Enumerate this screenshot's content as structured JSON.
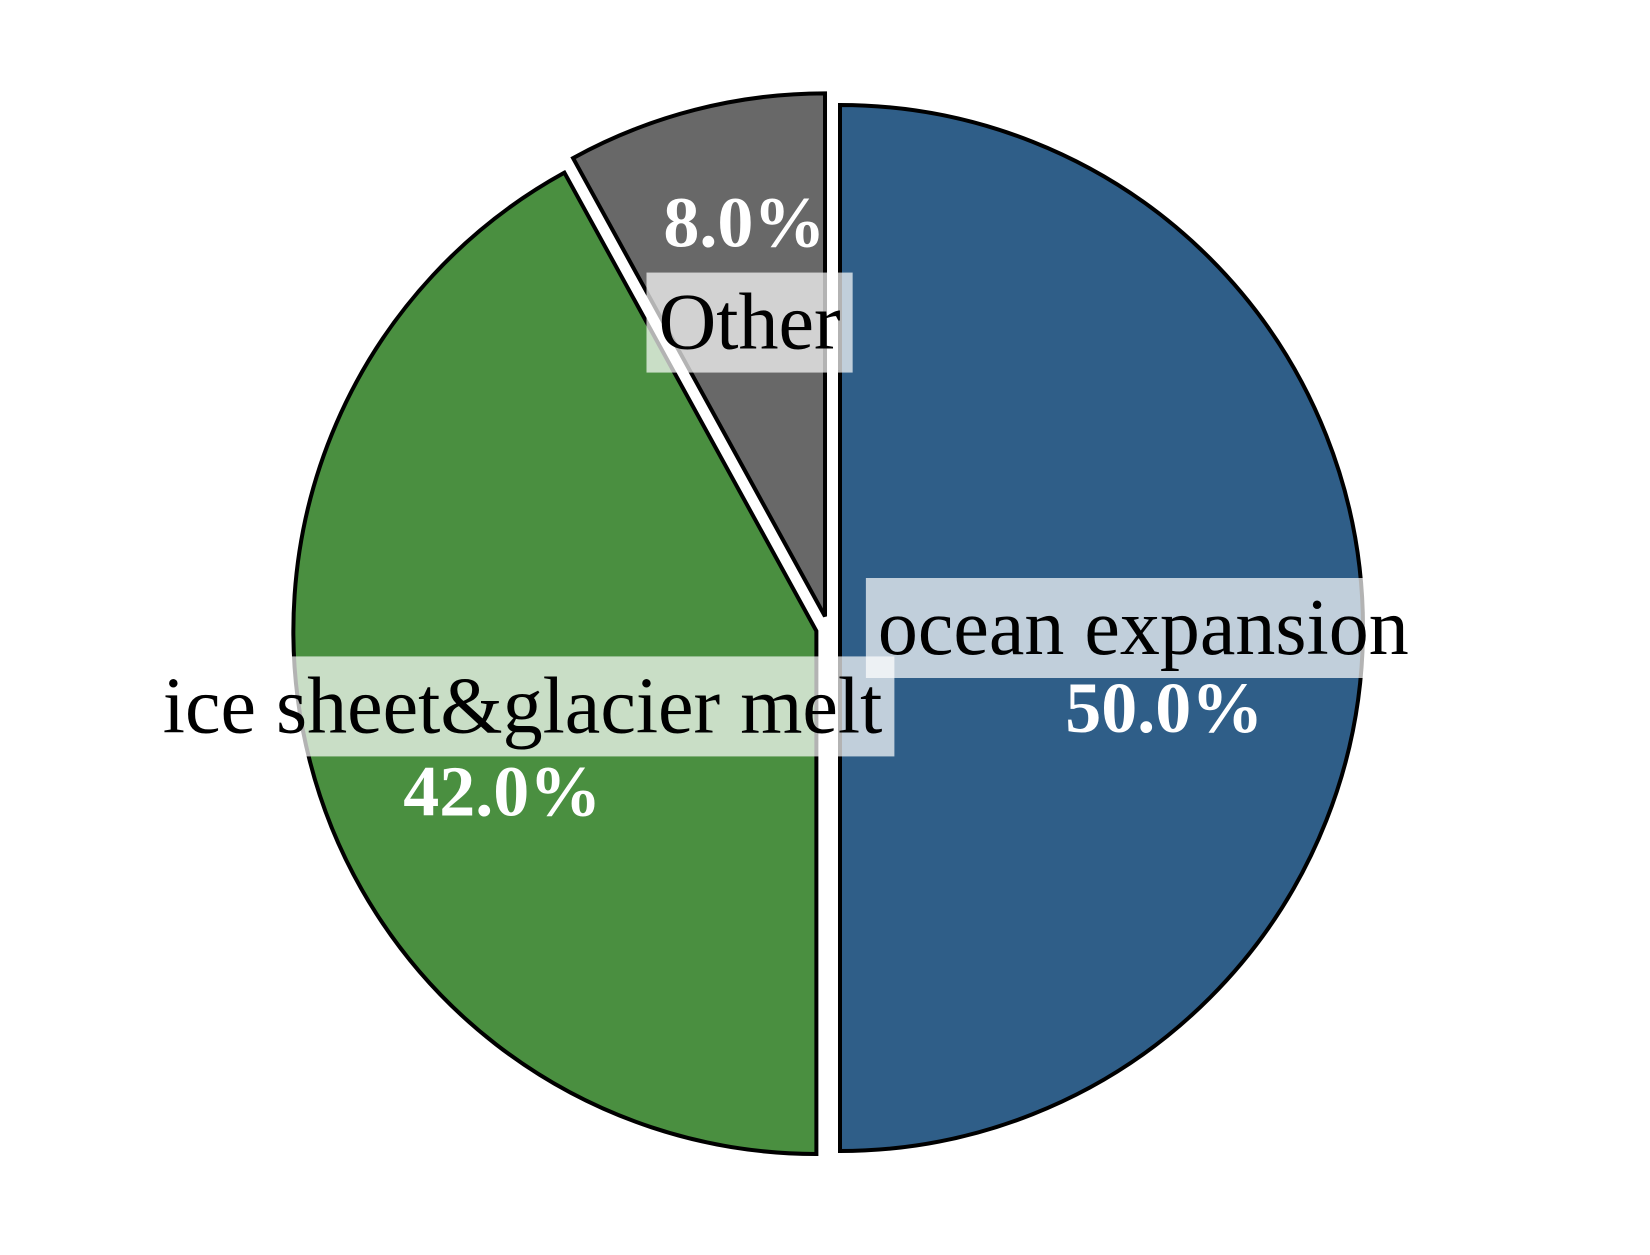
{
  "chart_data": {
    "type": "pie",
    "categories": [
      "ocean expansion",
      "ice sheet&glacier melt",
      "Other"
    ],
    "values": [
      50.0,
      42.0,
      8.0
    ],
    "percent_labels": [
      "50.0%",
      "42.0%",
      "8.0%"
    ],
    "colors": [
      "#2f5e88",
      "#4a8f40",
      "#686868"
    ],
    "start_angle_deg": 90,
    "direction": "clockwise",
    "exploded": true,
    "legend": "none"
  }
}
